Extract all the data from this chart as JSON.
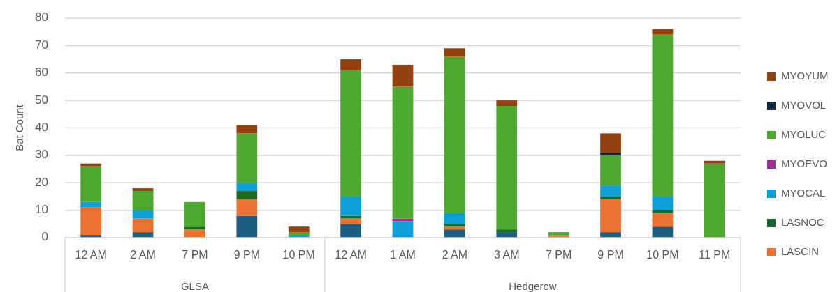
{
  "chart_data": {
    "type": "bar",
    "stacked": true,
    "ylabel": "Bat Count",
    "ylim": [
      0,
      80
    ],
    "yticks": [
      0,
      10,
      20,
      30,
      40,
      50,
      60,
      70,
      80
    ],
    "grid": "y",
    "legend": "right",
    "categories": [
      "12 AM",
      "2 AM",
      "7 PM",
      "9 PM",
      "10 PM",
      "12 AM",
      "1 AM",
      "2 AM",
      "3 AM",
      "7 PM",
      "9 PM",
      "10 PM",
      "11 PM"
    ],
    "annotations": [
      "GLSA",
      "Hedgerow"
    ],
    "series": [
      {
        "color": "#1b5e82",
        "values": [
          1,
          2,
          0,
          8,
          0,
          5,
          0,
          3,
          2,
          0,
          2,
          4,
          0
        ]
      },
      {
        "name": "LASCIN",
        "color": "#e97132",
        "values": [
          10,
          5,
          3,
          6,
          0,
          2,
          0,
          1,
          0,
          1,
          12,
          5,
          0
        ]
      },
      {
        "name": "LASNOC",
        "color": "#196b24",
        "values": [
          0,
          0,
          1,
          3,
          0,
          1,
          0,
          1,
          1,
          0,
          1,
          1,
          0
        ]
      },
      {
        "name": "MYOCAL",
        "color": "#0f9ed5",
        "values": [
          2,
          3,
          0,
          3,
          1,
          7,
          6,
          4,
          0,
          0,
          4,
          5,
          0
        ]
      },
      {
        "name": "MYOEVO",
        "color": "#a02b93",
        "values": [
          0,
          0,
          0,
          0,
          0,
          0,
          1,
          0,
          0,
          0,
          0,
          0,
          0
        ]
      },
      {
        "name": "MYOLUC",
        "color": "#4ea72e",
        "values": [
          13,
          7,
          9,
          18,
          1,
          46,
          48,
          57,
          45,
          1,
          11,
          59,
          27
        ]
      },
      {
        "name": "MYOVOL",
        "color": "#0e2841",
        "values": [
          0,
          0,
          0,
          0,
          0,
          0,
          0,
          0,
          0,
          0,
          1,
          0,
          0
        ]
      },
      {
        "name": "MYOYUM",
        "color": "#94400f",
        "values": [
          1,
          1,
          0,
          3,
          2,
          4,
          8,
          3,
          2,
          0,
          7,
          2,
          1
        ]
      }
    ]
  }
}
